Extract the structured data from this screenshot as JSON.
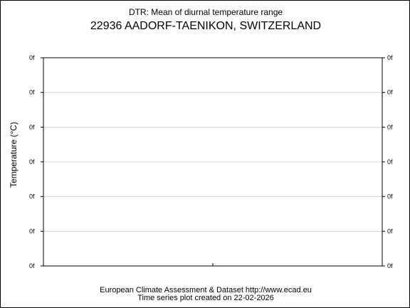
{
  "chart_data": {
    "type": "line",
    "title": "DTR: Mean of diurnal temperature range",
    "subtitle": "22936 AADORF-TAENIKON, SWITZERLAND",
    "ylabel": "Temperature (°C)",
    "xlabel": "",
    "y_tick_labels": [
      "0f",
      "0f",
      "0f",
      "0f",
      "0f",
      "0f",
      "0f"
    ],
    "grid": true,
    "series": []
  },
  "footer": {
    "line1": "European Climate Assessment & Dataset  http://www.ecad.eu",
    "line2": "Time series plot created on 22-02-2026"
  }
}
